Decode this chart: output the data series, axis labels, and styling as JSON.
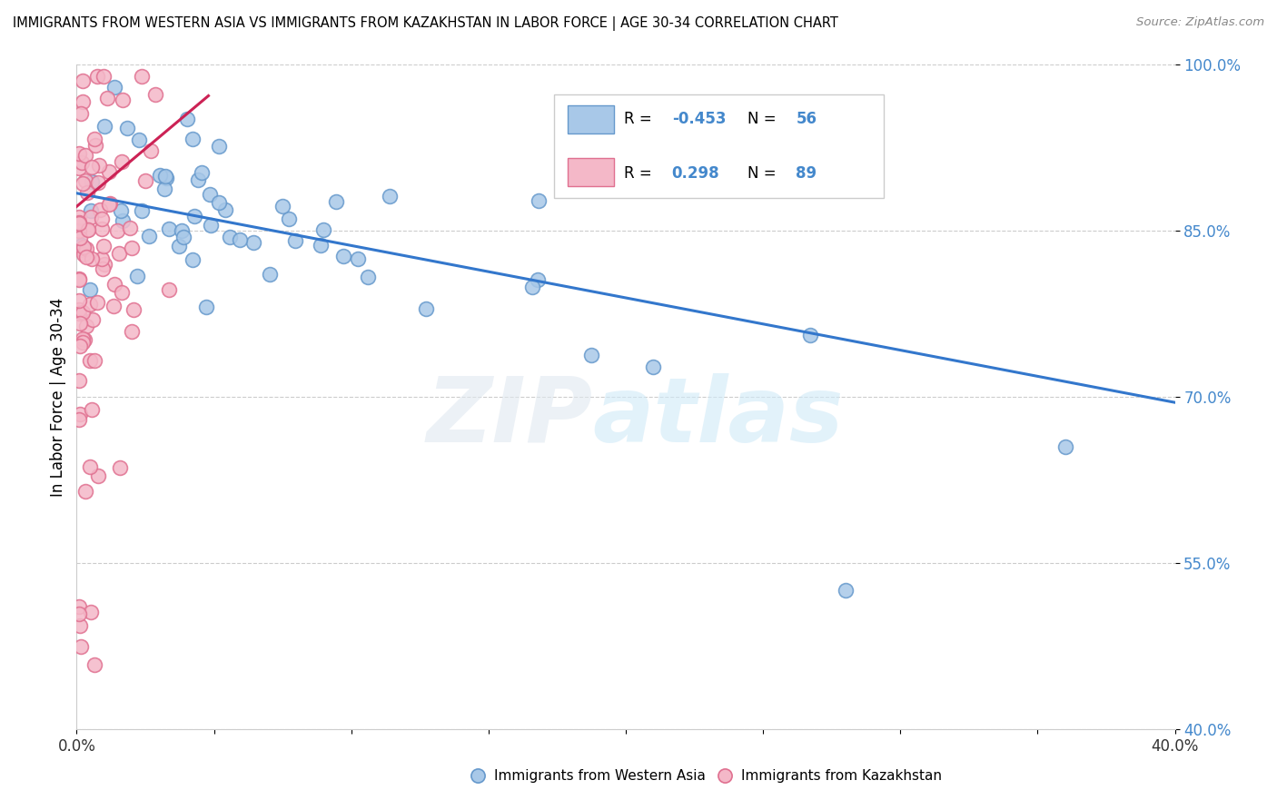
{
  "title": "IMMIGRANTS FROM WESTERN ASIA VS IMMIGRANTS FROM KAZAKHSTAN IN LABOR FORCE | AGE 30-34 CORRELATION CHART",
  "source": "Source: ZipAtlas.com",
  "ylabel": "In Labor Force | Age 30-34",
  "xlim": [
    0.0,
    0.4
  ],
  "ylim": [
    0.4,
    1.0
  ],
  "ytick_vals": [
    0.4,
    0.55,
    0.7,
    0.85,
    1.0
  ],
  "ytick_labels": [
    "40.0%",
    "55.0%",
    "70.0%",
    "85.0%",
    "100.0%"
  ],
  "xtick_vals": [
    0.0,
    0.05,
    0.1,
    0.15,
    0.2,
    0.25,
    0.3,
    0.35,
    0.4
  ],
  "xtick_labels": [
    "0.0%",
    "",
    "",
    "",
    "",
    "",
    "",
    "",
    "40.0%"
  ],
  "blue_face": "#a8c8e8",
  "blue_edge": "#6699cc",
  "pink_face": "#f4b8c8",
  "pink_edge": "#e07090",
  "trend_blue": "#3377cc",
  "trend_pink": "#cc2255",
  "legend_R1": "-0.453",
  "legend_N1": "56",
  "legend_R2": "0.298",
  "legend_N2": "89",
  "blue_trend_x": [
    0.0,
    0.4
  ],
  "blue_trend_y": [
    0.884,
    0.695
  ],
  "pink_trend_x": [
    0.0,
    0.048
  ],
  "pink_trend_y": [
    0.872,
    0.972
  ]
}
